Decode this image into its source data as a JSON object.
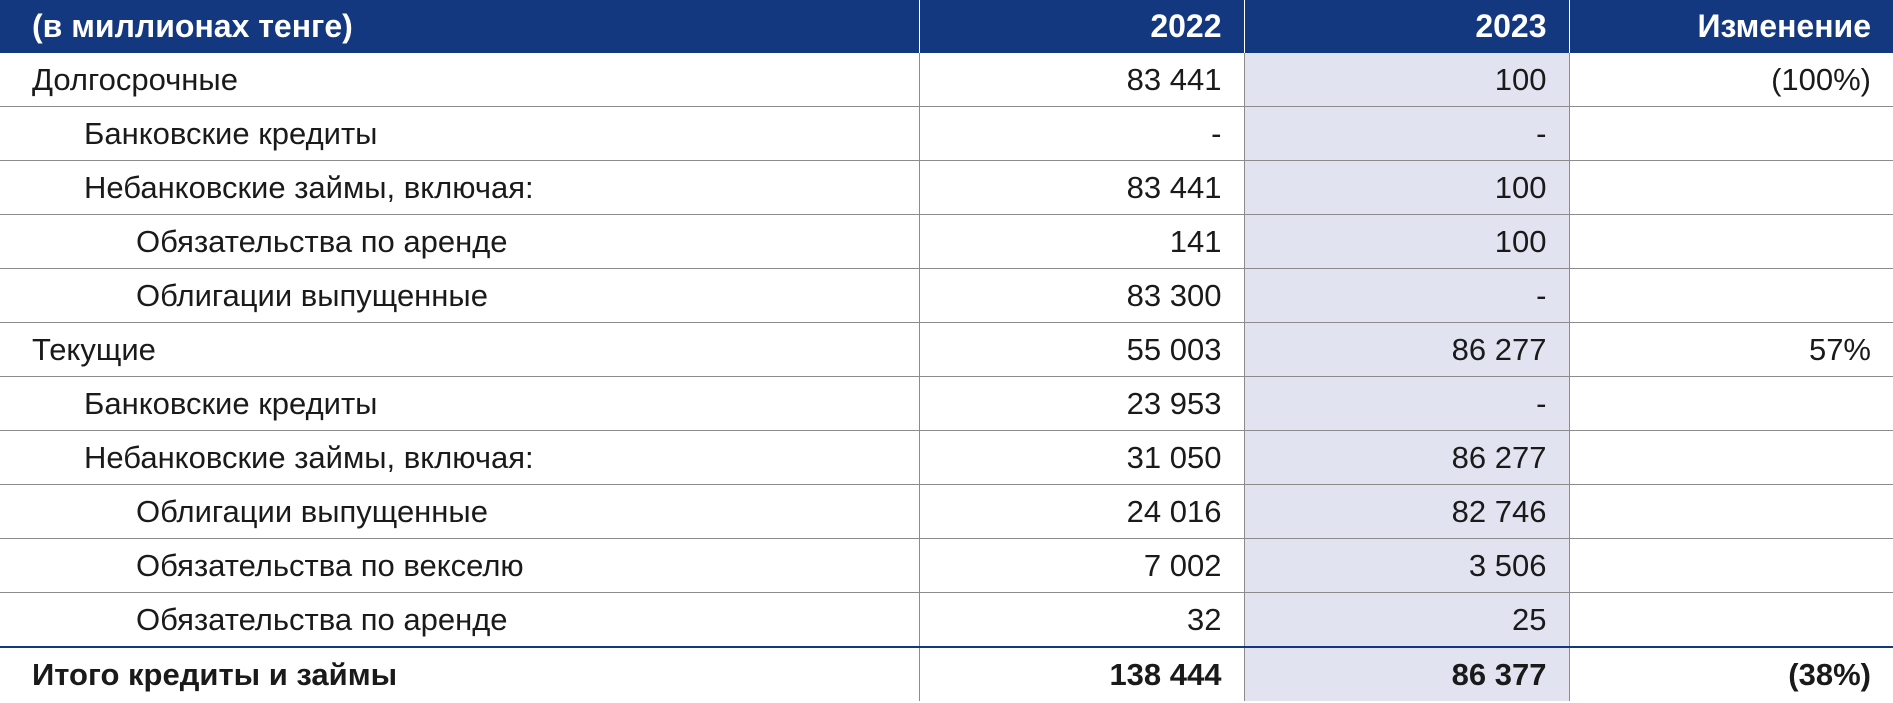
{
  "header": {
    "label": "(в миллионах тенге)",
    "col_2022": "2022",
    "col_2023": "2023",
    "col_change": "Изменение"
  },
  "rows": [
    {
      "label": "Долгосрочные",
      "y2022": "83 441",
      "y2023": "100",
      "change": "(100%)",
      "level": 0
    },
    {
      "label": "Банковские кредиты",
      "y2022": "-",
      "y2023": "-",
      "change": "",
      "level": 1
    },
    {
      "label": "Небанковские займы, включая:",
      "y2022": "83 441",
      "y2023": "100",
      "change": "",
      "level": 1
    },
    {
      "label": "Обязательства по аренде",
      "y2022": "141",
      "y2023": "100",
      "change": "",
      "level": 2
    },
    {
      "label": "Облигации выпущенные",
      "y2022": "83 300",
      "y2023": "-",
      "change": "",
      "level": 2
    },
    {
      "label": "Текущие",
      "y2022": "55 003",
      "y2023": "86 277",
      "change": "57%",
      "level": 0
    },
    {
      "label": "Банковские кредиты",
      "y2022": "23 953",
      "y2023": "-",
      "change": "",
      "level": 1
    },
    {
      "label": "Небанковские займы, включая:",
      "y2022": "31 050",
      "y2023": "86 277",
      "change": "",
      "level": 1
    },
    {
      "label": "Облигации выпущенные",
      "y2022": "24 016",
      "y2023": "82 746",
      "change": "",
      "level": 2
    },
    {
      "label": "Обязательства по векселю",
      "y2022": "7 002",
      "y2023": "3 506",
      "change": "",
      "level": 2
    },
    {
      "label": "Обязательства по аренде",
      "y2022": "32",
      "y2023": "25",
      "change": "",
      "level": 2
    }
  ],
  "total": {
    "label": "Итого кредиты и займы",
    "y2022": "138 444",
    "y2023": "86 377",
    "change": "(38%)"
  },
  "colors": {
    "header_bg": "#14387f",
    "header_text": "#ffffff",
    "highlight_2023": "#e1e4f0",
    "grid": "#8c8c8c"
  }
}
